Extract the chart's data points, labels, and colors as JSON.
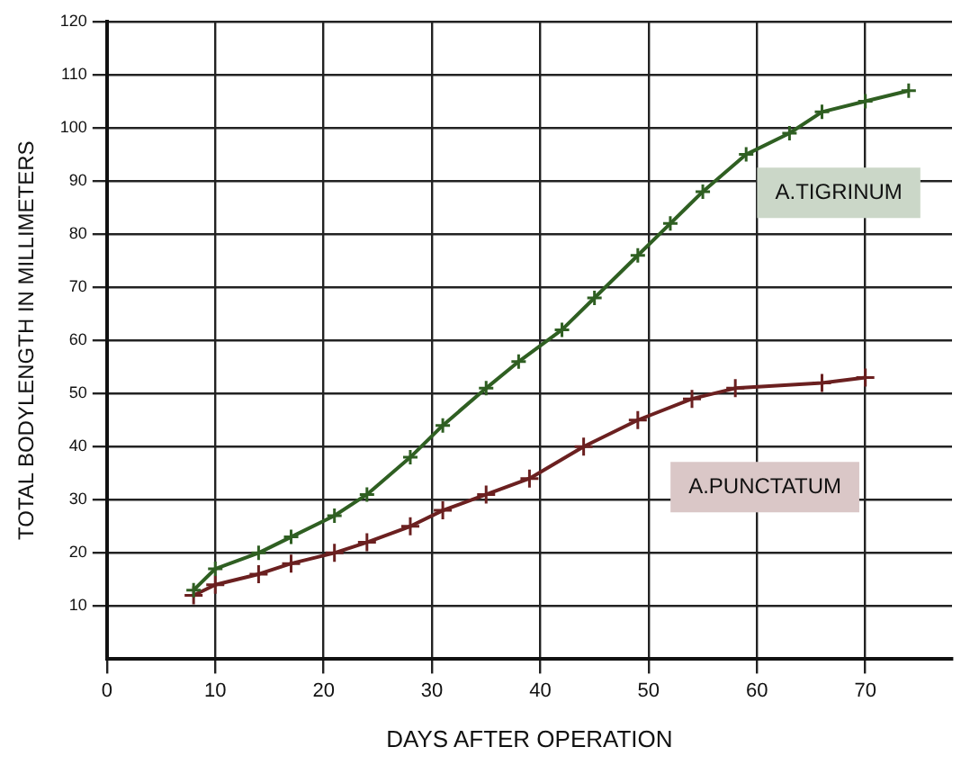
{
  "chart_data": {
    "type": "line",
    "xlabel": "DAYS AFTER OPERATION",
    "ylabel": "TOTAL BODYLENGTH IN MILLIMETERS",
    "xlim": [
      0,
      78
    ],
    "xticks": [
      0,
      10,
      20,
      30,
      40,
      50,
      60,
      70
    ],
    "ylim": [
      0,
      120
    ],
    "yticks": [
      10,
      20,
      30,
      40,
      50,
      60,
      70,
      80,
      90,
      100,
      110,
      120
    ],
    "grid": true,
    "legend": false,
    "marker": "cross",
    "line_style": "solid",
    "series": [
      {
        "name": "A.TIGRINUM",
        "color": "#2f5f22",
        "x": [
          8,
          10,
          14,
          17,
          21,
          24,
          28,
          31,
          35,
          38,
          42,
          45,
          49,
          52,
          55,
          59,
          63,
          66,
          70,
          74
        ],
        "values": [
          13,
          17,
          20,
          23,
          27,
          31,
          38,
          44,
          51,
          56,
          62,
          68,
          76,
          82,
          88,
          95,
          99,
          103,
          105,
          107
        ]
      },
      {
        "name": "A.PUNCTATUM",
        "color": "#6b2020",
        "x": [
          8,
          10,
          14,
          17,
          21,
          24,
          28,
          31,
          35,
          39,
          44,
          49,
          54,
          58,
          66,
          70
        ],
        "values": [
          12,
          14,
          16,
          18,
          20,
          22,
          25,
          28,
          31,
          34,
          40,
          45,
          49,
          51,
          52,
          53
        ]
      }
    ]
  }
}
